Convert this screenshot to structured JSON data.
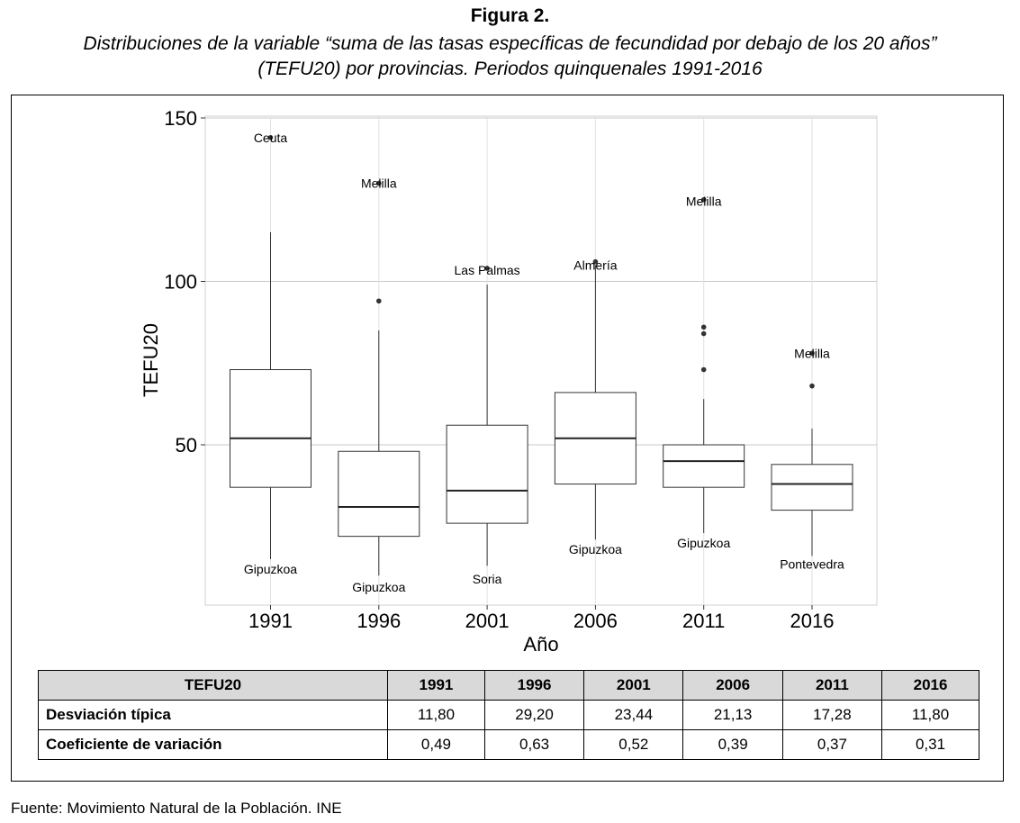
{
  "figure": {
    "label": "Figura 2.",
    "caption_line1": "Distribuciones de la variable “suma de las tasas específicas de fecundidad por debajo de los 20 años”",
    "caption_line2": "(TEFU20) por provincias. Periodos quinquenales 1991-2016"
  },
  "chart_data": {
    "type": "boxplot",
    "title": "",
    "xlabel": "Año",
    "ylabel": "TEFU20",
    "ylim": [
      0,
      150
    ],
    "yticks": [
      50,
      100,
      150
    ],
    "grid": true,
    "categories": [
      "1991",
      "1996",
      "2001",
      "2006",
      "2011",
      "2016"
    ],
    "boxes": [
      {
        "category": "1991",
        "whisker_low": 15,
        "q1": 37,
        "median": 52,
        "q3": 73,
        "whisker_high": 115
      },
      {
        "category": "1996",
        "whisker_low": 10,
        "q1": 22,
        "median": 31,
        "q3": 48,
        "whisker_high": 85
      },
      {
        "category": "2001",
        "whisker_low": 13,
        "q1": 26,
        "median": 36,
        "q3": 56,
        "whisker_high": 99
      },
      {
        "category": "2006",
        "whisker_low": 21,
        "q1": 38,
        "median": 52,
        "q3": 66,
        "whisker_high": 105
      },
      {
        "category": "2011",
        "whisker_low": 23,
        "q1": 37,
        "median": 45,
        "q3": 50,
        "whisker_high": 64
      },
      {
        "category": "2016",
        "whisker_low": 16,
        "q1": 30,
        "median": 38,
        "q3": 44,
        "whisker_high": 55
      }
    ],
    "outliers": [
      {
        "category": "1991",
        "value": 144
      },
      {
        "category": "1996",
        "value": 130
      },
      {
        "category": "1996",
        "value": 94
      },
      {
        "category": "2001",
        "value": 104
      },
      {
        "category": "2006",
        "value": 106
      },
      {
        "category": "2011",
        "value": 125
      },
      {
        "category": "2011",
        "value": 86
      },
      {
        "category": "2011",
        "value": 84
      },
      {
        "category": "2011",
        "value": 73
      },
      {
        "category": "2016",
        "value": 78
      },
      {
        "category": "2016",
        "value": 68
      }
    ],
    "annotations": [
      {
        "category": "1991",
        "value": 144,
        "text": "Ceuta"
      },
      {
        "category": "1991",
        "value": 12,
        "text": "Gipuzkoa"
      },
      {
        "category": "1996",
        "value": 130,
        "text": "Melilla"
      },
      {
        "category": "1996",
        "value": 6.5,
        "text": "Gipuzkoa"
      },
      {
        "category": "2001",
        "value": 103.5,
        "text": "Las Palmas"
      },
      {
        "category": "2001",
        "value": 9,
        "text": "Soria"
      },
      {
        "category": "2006",
        "value": 105,
        "text": "Almería"
      },
      {
        "category": "2006",
        "value": 18,
        "text": "Gipuzkoa"
      },
      {
        "category": "2011",
        "value": 124.5,
        "text": "Melilla"
      },
      {
        "category": "2011",
        "value": 20,
        "text": "Gipuzkoa"
      },
      {
        "category": "2016",
        "value": 78,
        "text": "Melilla"
      },
      {
        "category": "2016",
        "value": 13.5,
        "text": "Pontevedra"
      }
    ]
  },
  "table": {
    "header": [
      "TEFU20",
      "1991",
      "1996",
      "2001",
      "2006",
      "2011",
      "2016"
    ],
    "rows": [
      {
        "label": "Desviación típica",
        "values": [
          "11,80",
          "29,20",
          "23,44",
          "21,13",
          "17,28",
          "11,80"
        ]
      },
      {
        "label": "Coeficiente de variación",
        "values": [
          "0,49",
          "0,63",
          "0,52",
          "0,39",
          "0,37",
          "0,31"
        ]
      }
    ]
  },
  "source": "Fuente: Movimiento Natural de la Población. INE"
}
